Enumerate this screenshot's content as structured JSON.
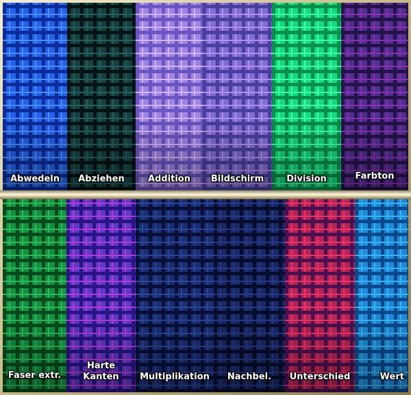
{
  "top_row": [
    {
      "label": "Abwedeln",
      "base": "#1f5ee8",
      "dark": "#0b2c9a",
      "light": "#4b8cff"
    },
    {
      "label": "Abziehen",
      "base": "#123a3a",
      "dark": "#031414",
      "light": "#23605e"
    },
    {
      "label": "Addition",
      "base": "#9b82e2",
      "dark": "#6a55c2",
      "light": "#d6b2ff"
    },
    {
      "label": "Bildschirm",
      "base": "#7c6ad2",
      "dark": "#4a3f9e",
      "light": "#b48ef0"
    },
    {
      "label": "Division",
      "base": "#12d87c",
      "dark": "#06904a",
      "light": "#3effa8"
    },
    {
      "label": "Farbton",
      "base": "#4a2a8c",
      "dark": "#25124a",
      "light": "#8a2fb0"
    }
  ],
  "bottom_row": [
    {
      "label": "Faser extr.",
      "base": "#0f8e3c",
      "dark": "#044a1c",
      "light": "#2fb85c"
    },
    {
      "label": "Harte\nKanten",
      "base": "#5a34c4",
      "dark": "#2a1486",
      "light": "#b23ad6"
    },
    {
      "label": "Multiplikation",
      "base": "#16286e",
      "dark": "#070f3a",
      "light": "#2a4596"
    },
    {
      "label": "Nachbel.",
      "base": "#15235e",
      "dark": "#060c2e",
      "light": "#24398a"
    },
    {
      "label": "Unterschied",
      "base": "#b02050",
      "dark": "#4a1050",
      "light": "#f0306a"
    },
    {
      "label": "Wert",
      "base": "#1c86d8",
      "dark": "#0a4a8c",
      "light": "#36b4f2"
    }
  ]
}
